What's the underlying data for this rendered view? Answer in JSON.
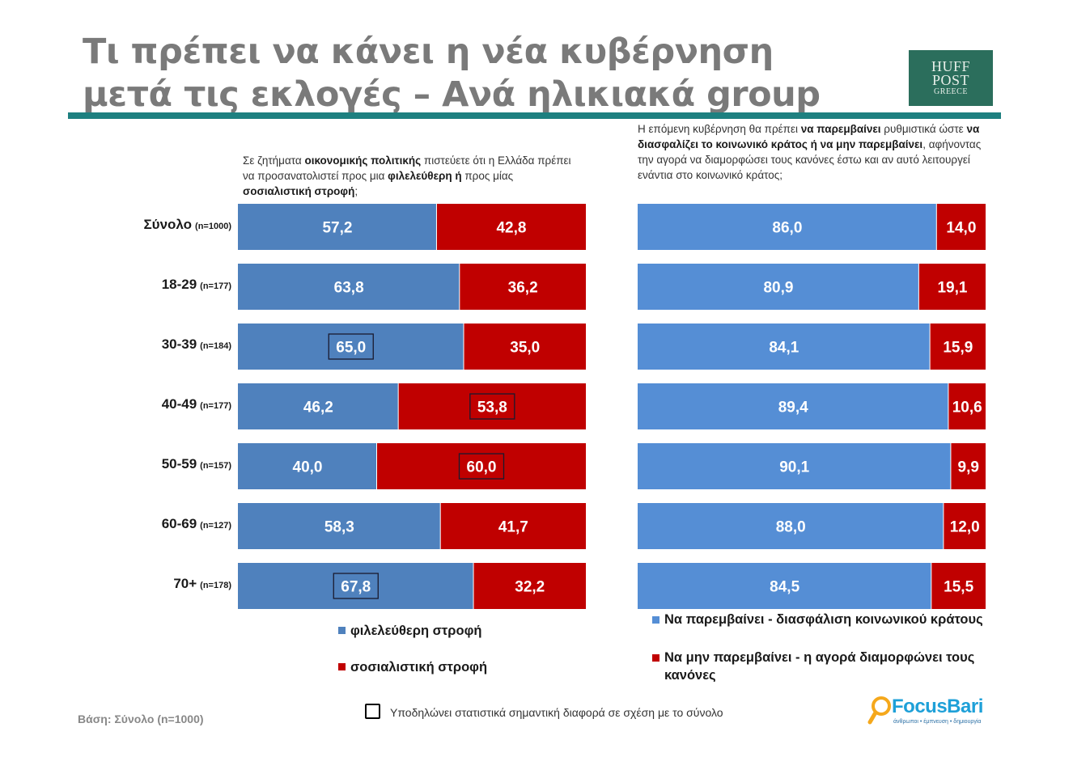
{
  "header": {
    "title_line1": "Τι πρέπει να κάνει η νέα κυβέρνηση",
    "title_line2": "μετά τις εκλογές – Ανά ηλικιακά group",
    "logo": {
      "line1": "HUFF",
      "line2": "POST",
      "line3": "GREECE"
    }
  },
  "colors": {
    "blue_left": "#4f81bd",
    "blue_right": "#558ed5",
    "red": "#c00000",
    "rule": "#1e8080"
  },
  "footer": {
    "base": "Βάση: Σύνολο (n=1000)",
    "note": "Υποδηλώνει στατιστικά σημαντική διαφορά σε σχέση με το σύνολο",
    "brand": {
      "name": "FocusBari",
      "tagline": "άνθρωποι • έμπνευση • δημιουργία"
    }
  },
  "rows": [
    {
      "group": "Σύνολο",
      "n": "(n=1000)"
    },
    {
      "group": "18-29",
      "n": "(n=177)"
    },
    {
      "group": "30-39",
      "n": "(n=184)"
    },
    {
      "group": "40-49",
      "n": "(n=177)"
    },
    {
      "group": "50-59",
      "n": "(n=157)"
    },
    {
      "group": "60-69",
      "n": "(n=127)"
    },
    {
      "group": "70+",
      "n": "(n=178)"
    }
  ],
  "chart_data": [
    {
      "type": "bar",
      "stacked": true,
      "orientation": "horizontal",
      "question": {
        "parts": [
          {
            "text": "Σε ζητήματα ",
            "bold": false
          },
          {
            "text": "οικονομικής πολιτικής",
            "bold": true
          },
          {
            "text": " πιστεύετε ότι η Ελλάδα πρέπει να προσανατολιστεί προς μια ",
            "bold": false
          },
          {
            "text": "φιλελεύθερη ή",
            "bold": true
          },
          {
            "text": " προς μίας ",
            "bold": false
          },
          {
            "text": "σοσιαλιστική στροφή",
            "bold": true
          },
          {
            "text": ";",
            "bold": false
          }
        ]
      },
      "categories": [
        "Σύνολο (n=1000)",
        "18-29 (n=177)",
        "30-39 (n=184)",
        "40-49 (n=177)",
        "50-59 (n=157)",
        "60-69 (n=127)",
        "70+ (n=178)"
      ],
      "series": [
        {
          "name": "φιλελεύθερη στροφή",
          "color": "#4f81bd",
          "values": [
            57.2,
            63.8,
            65.0,
            46.2,
            40.0,
            58.3,
            67.8
          ],
          "labels": [
            "57,2",
            "63,8",
            "65,0",
            "46,2",
            "40,0",
            "58,3",
            "67,8"
          ],
          "significant": [
            false,
            false,
            true,
            false,
            false,
            false,
            true
          ]
        },
        {
          "name": "σοσιαλιστική στροφή",
          "color": "#c00000",
          "values": [
            42.8,
            36.2,
            35.0,
            53.8,
            60.0,
            41.7,
            32.2
          ],
          "labels": [
            "42,8",
            "36,2",
            "35,0",
            "53,8",
            "60,0",
            "41,7",
            "32,2"
          ],
          "significant": [
            false,
            false,
            false,
            true,
            true,
            false,
            false
          ]
        }
      ],
      "xlim": [
        0,
        100
      ],
      "legend": "bottom"
    },
    {
      "type": "bar",
      "stacked": true,
      "orientation": "horizontal",
      "question": {
        "parts": [
          {
            "text": "Η επόμενη κυβέρνηση θα πρέπει ",
            "bold": false
          },
          {
            "text": "να παρεμβαίνει",
            "bold": true
          },
          {
            "text": " ρυθμιστικά ώστε ",
            "bold": false
          },
          {
            "text": "να διασφαλίζει το κοινωνικό κράτος ή να μην παρεμβαίνει",
            "bold": true
          },
          {
            "text": ", αφήνοντας την αγορά να διαμορφώσει τους κανόνες έστω και αν αυτό λειτουργεί ενάντια στο κοινωνικό κράτος;",
            "bold": false
          }
        ]
      },
      "categories": [
        "Σύνολο (n=1000)",
        "18-29 (n=177)",
        "30-39 (n=184)",
        "40-49 (n=177)",
        "50-59 (n=157)",
        "60-69 (n=127)",
        "70+ (n=178)"
      ],
      "series": [
        {
          "name": "Να παρεμβαίνει - διασφάλιση κοινωνικού κράτους",
          "color": "#558ed5",
          "values": [
            86.0,
            80.9,
            84.1,
            89.4,
            90.1,
            88.0,
            84.5
          ],
          "labels": [
            "86,0",
            "80,9",
            "84,1",
            "89,4",
            "90,1",
            "88,0",
            "84,5"
          ],
          "significant": [
            false,
            false,
            false,
            false,
            false,
            false,
            false
          ]
        },
        {
          "name": "Να μην παρεμβαίνει - η αγορά διαμορφώνει τους κανόνες",
          "color": "#c00000",
          "values": [
            14.0,
            19.1,
            15.9,
            10.6,
            9.9,
            12.0,
            15.5
          ],
          "labels": [
            "14,0",
            "19,1",
            "15,9",
            "10,6",
            "9,9",
            "12,0",
            "15,5"
          ],
          "significant": [
            false,
            false,
            false,
            false,
            false,
            false,
            false
          ]
        }
      ],
      "xlim": [
        0,
        100
      ],
      "legend": "bottom"
    }
  ]
}
